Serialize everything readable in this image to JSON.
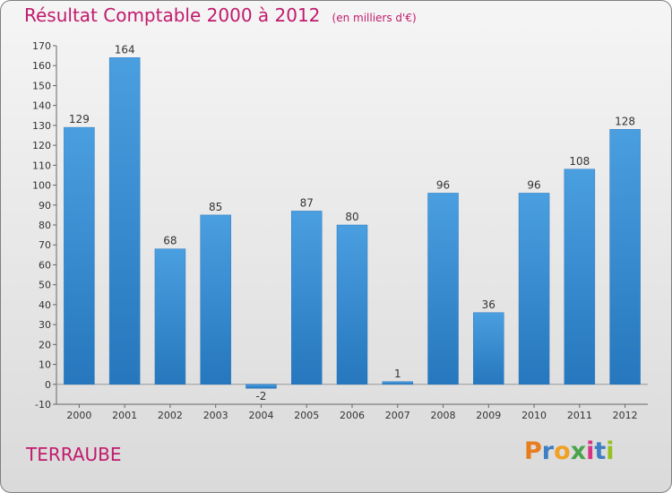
{
  "title": "Résultat Comptable 2000 à 2012",
  "unit_label": "(en milliers d'€)",
  "location": "TERRAUBE",
  "logo": {
    "text": "Proxiti",
    "letters": [
      "P",
      "r",
      "o",
      "x",
      "i",
      "t",
      "i"
    ],
    "colors": [
      "#e87d1e",
      "#3e7fc3",
      "#f0a023",
      "#4aa34a",
      "#d63384",
      "#3e7fc3",
      "#95c11f"
    ]
  },
  "chart_data": {
    "type": "bar",
    "categories": [
      "2000",
      "2001",
      "2002",
      "2003",
      "2004",
      "2005",
      "2006",
      "2007",
      "2008",
      "2009",
      "2010",
      "2011",
      "2012"
    ],
    "values": [
      129,
      164,
      68,
      85,
      -2,
      87,
      80,
      1,
      96,
      36,
      96,
      108,
      128
    ],
    "data_labels": [
      "129",
      "164",
      "68",
      "85",
      "-2",
      "87",
      "80",
      "1",
      "96",
      "36",
      "96",
      "108",
      "128"
    ],
    "ylim": [
      -10,
      170
    ],
    "yticks": [
      -10,
      0,
      10,
      20,
      30,
      40,
      50,
      60,
      70,
      80,
      90,
      100,
      110,
      120,
      130,
      140,
      150,
      160,
      170
    ],
    "grid": false,
    "bar_color": "#4a9fe0",
    "bar_color_dark": "#2677bd",
    "title_color": "#c11a6c"
  }
}
